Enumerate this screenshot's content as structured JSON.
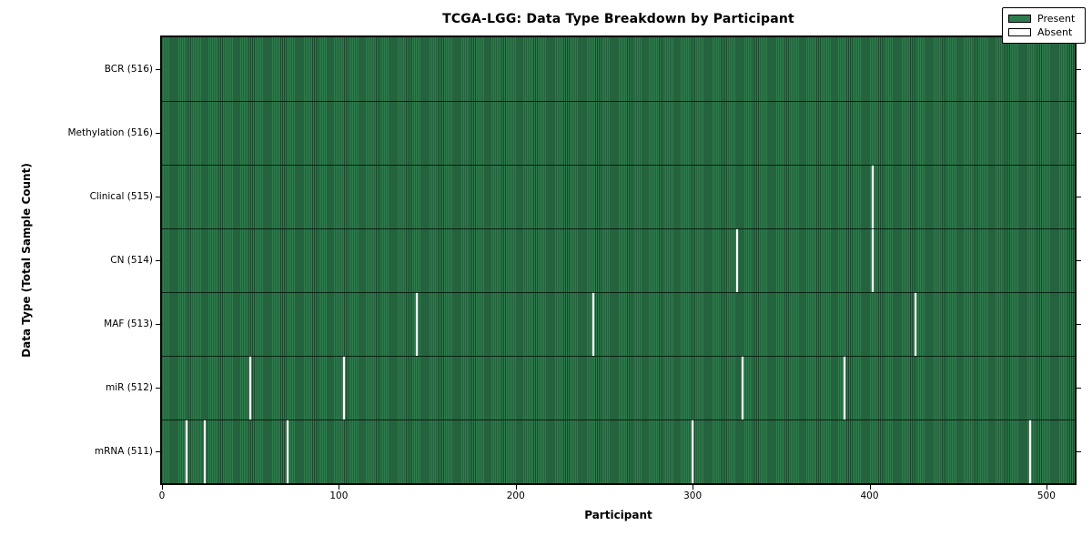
{
  "figure": {
    "background": "#ffffff"
  },
  "chart_data": {
    "type": "heatmap",
    "title": "TCGA-LGG: Data Type Breakdown by Participant",
    "xlabel": "Participant",
    "ylabel": "Data Type (Total Sample Count)",
    "x_range": [
      0,
      516
    ],
    "total_participants": 516,
    "x_ticks": [
      0,
      100,
      200,
      300,
      400,
      500
    ],
    "grid": false,
    "legend_position": "upper right",
    "legend": [
      {
        "label": "Present",
        "key": "present"
      },
      {
        "label": "Absent",
        "key": "absent"
      }
    ],
    "colors": {
      "present": "#2e7c4d",
      "present_stripe": "#1a4a2d",
      "absent": "#ffffff",
      "frame": "#000000"
    },
    "rows": [
      {
        "label": "BCR (516)",
        "data_type": "BCR",
        "present_count": 516,
        "absent_participants": []
      },
      {
        "label": "Methylation (516)",
        "data_type": "Methylation",
        "present_count": 516,
        "absent_participants": []
      },
      {
        "label": "Clinical (515)",
        "data_type": "Clinical",
        "present_count": 515,
        "absent_participants": [
          402
        ]
      },
      {
        "label": "CN (514)",
        "data_type": "CN",
        "present_count": 514,
        "absent_participants": [
          325,
          402
        ]
      },
      {
        "label": "MAF (513)",
        "data_type": "MAF",
        "present_count": 513,
        "absent_participants": [
          144,
          244,
          426
        ]
      },
      {
        "label": "miR (512)",
        "data_type": "miR",
        "present_count": 512,
        "absent_participants": [
          50,
          103,
          328,
          386
        ]
      },
      {
        "label": "mRNA (511)",
        "data_type": "mRNA",
        "present_count": 511,
        "absent_participants": [
          14,
          24,
          71,
          300,
          491
        ]
      }
    ]
  }
}
